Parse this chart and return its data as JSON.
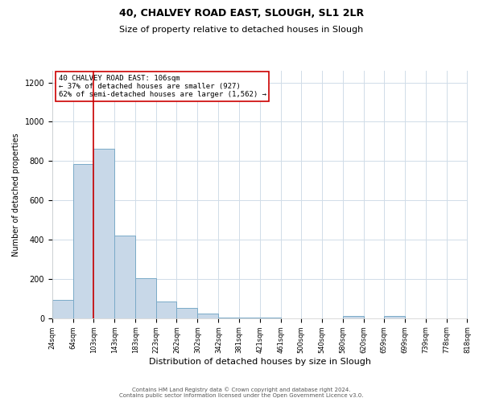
{
  "title": "40, CHALVEY ROAD EAST, SLOUGH, SL1 2LR",
  "subtitle": "Size of property relative to detached houses in Slough",
  "xlabel": "Distribution of detached houses by size in Slough",
  "ylabel": "Number of detached properties",
  "footer_line1": "Contains HM Land Registry data © Crown copyright and database right 2024.",
  "footer_line2": "Contains public sector information licensed under the Open Government Licence v3.0.",
  "annotation_line1": "40 CHALVEY ROAD EAST: 106sqm",
  "annotation_line2": "← 37% of detached houses are smaller (927)",
  "annotation_line3": "62% of semi-detached houses are larger (1,562) →",
  "bar_color": "#c8d8e8",
  "bar_edge_color": "#7aaac8",
  "vline_color": "#cc0000",
  "vline_x": 103,
  "ylim": [
    0,
    1260
  ],
  "yticks": [
    0,
    200,
    400,
    600,
    800,
    1000,
    1200
  ],
  "bin_edges": [
    24,
    64,
    103,
    143,
    183,
    223,
    262,
    302,
    342,
    381,
    421,
    461,
    500,
    540,
    580,
    620,
    659,
    699,
    739,
    778,
    818
  ],
  "bin_labels": [
    "24sqm",
    "64sqm",
    "103sqm",
    "143sqm",
    "183sqm",
    "223sqm",
    "262sqm",
    "302sqm",
    "342sqm",
    "381sqm",
    "421sqm",
    "461sqm",
    "500sqm",
    "540sqm",
    "580sqm",
    "620sqm",
    "659sqm",
    "699sqm",
    "739sqm",
    "778sqm",
    "818sqm"
  ],
  "bar_heights": [
    95,
    785,
    862,
    420,
    205,
    85,
    52,
    22,
    5,
    2,
    1,
    0,
    0,
    0,
    10,
    0,
    10,
    0,
    0,
    0
  ],
  "background_color": "#ffffff",
  "grid_color": "#d0dce8",
  "annotation_box_edge_color": "#cc0000",
  "title_fontsize": 9,
  "subtitle_fontsize": 8,
  "ylabel_fontsize": 7,
  "xlabel_fontsize": 8,
  "ytick_fontsize": 7,
  "xtick_fontsize": 6,
  "annotation_fontsize": 6.5,
  "footer_fontsize": 5
}
